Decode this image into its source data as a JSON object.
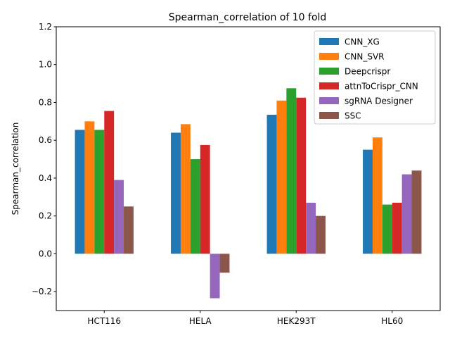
{
  "chart_data": {
    "type": "bar",
    "title": "Spearman_correlation of 10 fold",
    "xlabel": "",
    "ylabel": "Spearman_correlation",
    "ylim": [
      -0.3,
      1.2
    ],
    "yticks": [
      -0.2,
      0.0,
      0.2,
      0.4,
      0.6,
      0.8,
      1.0,
      1.2
    ],
    "ytick_labels": [
      "−0.2",
      "0.0",
      "0.2",
      "0.4",
      "0.6",
      "0.8",
      "1.0",
      "1.2"
    ],
    "categories": [
      "HCT116",
      "HELA",
      "HEK293T",
      "HL60"
    ],
    "grid": false,
    "legend_position": "top-right",
    "series": [
      {
        "name": "CNN_XG",
        "color": "#1f77b4",
        "values": [
          0.655,
          0.64,
          0.735,
          0.55
        ]
      },
      {
        "name": "CNN_SVR",
        "color": "#ff7f0e",
        "values": [
          0.7,
          0.685,
          0.81,
          0.615
        ]
      },
      {
        "name": "Deepcrispr",
        "color": "#2ca02c",
        "values": [
          0.655,
          0.5,
          0.875,
          0.26
        ]
      },
      {
        "name": "attnToCrispr_CNN",
        "color": "#d62728",
        "values": [
          0.755,
          0.575,
          0.825,
          0.27
        ]
      },
      {
        "name": "sgRNA Designer",
        "color": "#9467bd",
        "values": [
          0.39,
          -0.235,
          0.27,
          0.42
        ]
      },
      {
        "name": "SSC",
        "color": "#8c564b",
        "values": [
          0.25,
          -0.1,
          0.2,
          0.44
        ]
      }
    ]
  }
}
